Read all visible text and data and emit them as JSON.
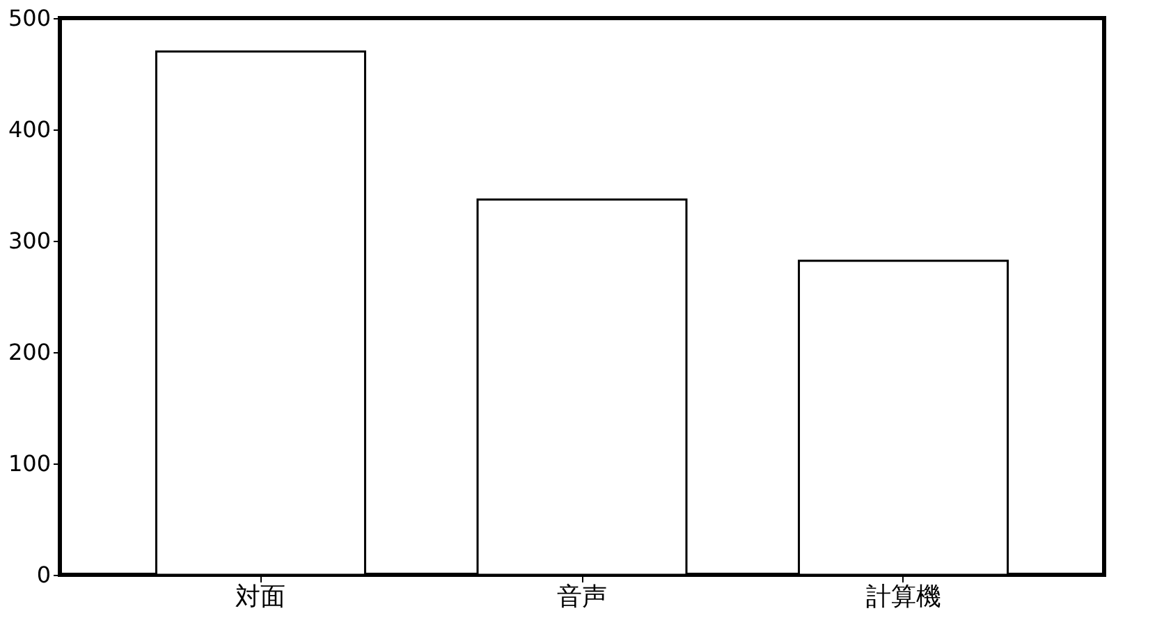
{
  "chart_data": {
    "type": "bar",
    "categories": [
      "対面",
      "音声",
      "計算機"
    ],
    "values": [
      470,
      337,
      282
    ],
    "color": "#ffffff",
    "ylim": [
      0,
      500
    ],
    "yticks": [
      0,
      100,
      200,
      300,
      400,
      500
    ],
    "grid": false
  }
}
